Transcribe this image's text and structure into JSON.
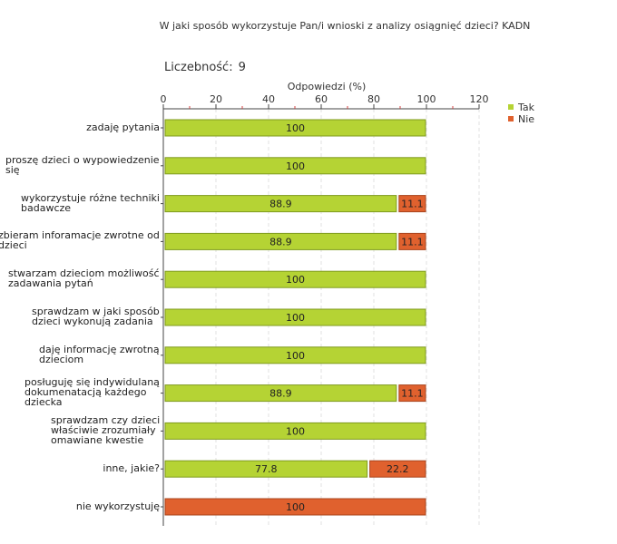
{
  "title": "W jaki sposób wykorzystuje Pan/i wnioski z analizy osiągnięć dzieci? KADN",
  "count": {
    "label": "Liczebność:",
    "value": "9"
  },
  "chart_data": {
    "type": "bar",
    "orientation": "horizontal",
    "stacked": true,
    "xlabel": "Odpowiedzi (%)",
    "xlim": [
      0,
      120
    ],
    "xticks": [
      0,
      20,
      40,
      60,
      80,
      100,
      120
    ],
    "grid": true,
    "legend_position": "top-right",
    "categories": [
      "zadaję pytania",
      "proszę dzieci o wypowiedzenie się",
      "wykorzystuje różne techniki badawcze",
      "zbieram inforamacje zwrotne od dzieci",
      "stwarzam dzieciom możliwość zadawania pytań",
      "sprawdzam w jaki sposób dzieci wykonują zadania",
      "daję informację zwrotną dzieciom",
      "posługuję się indywidulaną dokumenatacją każdego dziecka",
      "sprawdzam czy dzieci właściwie zrozumiały omawiane kwestie",
      "inne, jakie?",
      "nie wykorzystuję"
    ],
    "category_lines": [
      [
        "zadaję pytania"
      ],
      [
        "proszę dzieci o wypowiedzenie",
        "się"
      ],
      [
        "wykorzystuje różne techniki",
        "badawcze"
      ],
      [
        "zbieram inforamacje zwrotne od",
        "dzieci"
      ],
      [
        "stwarzam dzieciom możliwość",
        "zadawania pytań"
      ],
      [
        "sprawdzam w jaki sposób",
        "dzieci wykonują zadania"
      ],
      [
        "daję informację zwrotną",
        "dzieciom"
      ],
      [
        "posługuję się indywidulaną",
        "dokumenatacją każdego",
        "dziecka"
      ],
      [
        "sprawdzam czy dzieci",
        "właściwie zrozumiały",
        "omawiane kwestie"
      ],
      [
        "inne, jakie?"
      ],
      [
        "nie wykorzystuję"
      ]
    ],
    "series": [
      {
        "name": "Tak",
        "color": "#b5d334",
        "values": [
          100,
          100,
          88.9,
          88.9,
          100,
          100,
          100,
          88.9,
          100,
          77.8,
          0
        ],
        "labels": [
          "100",
          "100",
          "88.9",
          "88.9",
          "100",
          "100",
          "100",
          "88.9",
          "100",
          "77.8",
          ""
        ]
      },
      {
        "name": "Nie",
        "color": "#e0612e",
        "values": [
          0,
          0,
          11.1,
          11.1,
          0,
          0,
          0,
          11.1,
          0,
          22.2,
          100
        ],
        "labels": [
          "",
          "",
          "11.1",
          "11.1",
          "",
          "",
          "",
          "11.1",
          "",
          "22.2",
          "100"
        ]
      }
    ]
  }
}
